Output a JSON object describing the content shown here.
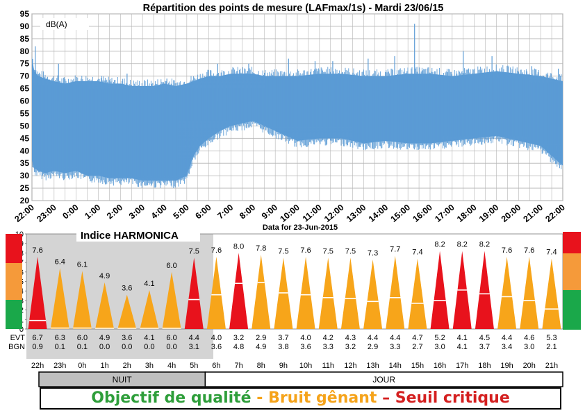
{
  "colors": {
    "signal": "#5b9bd5",
    "red": "#e8121c",
    "orange": "#f7a51a",
    "green": "#1aa84a",
    "scale_orange": "#f59a3a",
    "night_bg": "#d4d4d4",
    "night_bar": "#bfbfbf",
    "grid": "#b5b5b5",
    "legend_good": "#2e9e3a",
    "legend_mid": "#f5a31a",
    "legend_bad": "#d41f1f"
  },
  "chart_data": [
    {
      "type": "area",
      "title": "Répartition des points de mesure (LAFmax/1s) - Mardi 23/06/15",
      "unit_label": "dB(A)",
      "xlabel": "Data for 23-Jun-2015",
      "ylim": [
        20,
        95
      ],
      "yticks": [
        20,
        25,
        30,
        35,
        40,
        45,
        50,
        55,
        60,
        65,
        70,
        75,
        80,
        85,
        90,
        95
      ],
      "xticks": [
        "22:00",
        "23:00",
        "0:00",
        "1:00",
        "2:00",
        "3:00",
        "4:00",
        "5:00",
        "6:00",
        "7:00",
        "8:00",
        "9:00",
        "10:00",
        "11:00",
        "12:00",
        "13:00",
        "14:00",
        "15:00",
        "16:00",
        "17:00",
        "18:00",
        "19:00",
        "20:00",
        "21:00",
        "22:00"
      ],
      "grid": true,
      "envelope_hours": [
        22,
        22.1,
        22.3,
        22.6,
        23,
        23.5,
        0,
        0.5,
        1,
        1.5,
        2,
        2.5,
        3,
        3.5,
        4,
        4.5,
        5,
        5.3,
        5.6,
        6,
        6.5,
        7,
        7.5,
        8,
        8.5,
        9,
        10,
        11,
        12,
        13,
        14,
        15,
        16,
        17,
        18,
        19,
        20,
        21,
        21.5,
        22
      ],
      "envelope_upper": [
        78,
        72,
        70,
        69,
        68,
        67,
        68,
        68,
        68,
        67,
        67,
        66,
        66,
        66,
        67,
        66,
        67,
        68,
        69,
        70,
        70,
        71,
        71,
        71,
        70,
        70,
        70,
        71,
        71,
        70,
        70,
        71,
        71,
        70,
        71,
        72,
        71,
        70,
        69,
        68
      ],
      "envelope_lower": [
        36,
        33,
        32,
        31,
        32,
        31,
        32,
        30,
        30,
        29,
        29,
        29,
        28,
        28,
        28,
        28,
        30,
        38,
        42,
        45,
        48,
        50,
        51,
        52,
        50,
        48,
        44,
        45,
        45,
        43,
        44,
        43,
        43,
        44,
        45,
        46,
        44,
        42,
        38,
        34
      ],
      "peaks": [
        [
          22.15,
          82
        ],
        [
          23.2,
          75
        ],
        [
          2.3,
          71
        ],
        [
          4.1,
          69
        ],
        [
          6.4,
          75
        ],
        [
          7.8,
          75
        ],
        [
          9.6,
          77
        ],
        [
          10.8,
          76
        ],
        [
          11.6,
          76
        ],
        [
          13.2,
          77
        ],
        [
          14.4,
          78
        ],
        [
          15.3,
          91
        ],
        [
          17.5,
          80
        ],
        [
          18.8,
          78
        ],
        [
          20.6,
          74
        ],
        [
          21.8,
          73
        ]
      ]
    },
    {
      "type": "bar",
      "title": "Indice HARMONICA",
      "ylim": [
        0,
        10
      ],
      "yticks": [
        0,
        1,
        2,
        3,
        4,
        5,
        6,
        7,
        8,
        9,
        10
      ],
      "categories": [
        "22h",
        "23h",
        "0h",
        "1h",
        "2h",
        "3h",
        "4h",
        "5h",
        "6h",
        "7h",
        "8h",
        "9h",
        "10h",
        "11h",
        "12h",
        "13h",
        "14h",
        "15h",
        "16h",
        "17h",
        "18h",
        "19h",
        "20h",
        "21h"
      ],
      "values": [
        7.6,
        6.4,
        6.1,
        4.9,
        3.6,
        4.1,
        6.0,
        7.5,
        7.6,
        8.0,
        7.8,
        7.5,
        7.6,
        7.5,
        7.5,
        7.3,
        7.7,
        7.4,
        8.2,
        8.2,
        8.2,
        7.6,
        7.6,
        7.4
      ],
      "value_labels": [
        "7.6",
        "6.4",
        "6.1",
        "4.9",
        "3.6",
        "4.1",
        "6.0",
        "7.5",
        "7.6",
        "8.0",
        "7.8",
        "7.5",
        "7.6",
        "7.5",
        "7.5",
        "7.3",
        "7.7",
        "7.4",
        "8.2",
        "8.2",
        "8.2",
        "7.6",
        "7.6",
        "7.4"
      ],
      "bgn_marker": [
        0.9,
        0.1,
        0.1,
        0.0,
        0.0,
        0.0,
        0.0,
        3.1,
        3.6,
        4.8,
        4.9,
        3.8,
        3.6,
        3.3,
        3.2,
        2.9,
        3.3,
        2.7,
        3.0,
        4.1,
        3.7,
        3.4,
        3.0,
        2.1
      ],
      "levels": [
        "red",
        "orange",
        "orange",
        "orange",
        "orange",
        "orange",
        "orange",
        "red",
        "orange",
        "red",
        "orange",
        "orange",
        "orange",
        "orange",
        "orange",
        "orange",
        "orange",
        "orange",
        "red",
        "red",
        "red",
        "orange",
        "orange",
        "orange"
      ],
      "table_rows": [
        {
          "label": "EVT",
          "values": [
            "6.7",
            "6.3",
            "6.0",
            "4.9",
            "3.6",
            "4.1",
            "6.0",
            "4.4",
            "4.0",
            "3.2",
            "2.9",
            "3.7",
            "4.0",
            "4.2",
            "4.3",
            "4.4",
            "4.4",
            "4.7",
            "5.2",
            "4.1",
            "4.5",
            "4.4",
            "4.6",
            "5.3"
          ]
        },
        {
          "label": "BGN",
          "values": [
            "0.9",
            "0.1",
            "0.1",
            "0.0",
            "0.0",
            "0.0",
            "0.0",
            "3.1",
            "3.6",
            "4.8",
            "4.9",
            "3.8",
            "3.6",
            "3.3",
            "3.2",
            "2.9",
            "3.3",
            "2.7",
            "3.0",
            "4.1",
            "3.7",
            "3.4",
            "3.0",
            "2.1"
          ]
        }
      ],
      "periods": [
        {
          "label": "NUIT",
          "span": 8
        },
        {
          "label": "JOUR",
          "span": 16
        }
      ]
    }
  ],
  "legend": {
    "good": "Objectif de qualité",
    "sep1": " - ",
    "mid": "Bruit gênant",
    "sep2": " – ",
    "bad": "Seuil critique"
  }
}
